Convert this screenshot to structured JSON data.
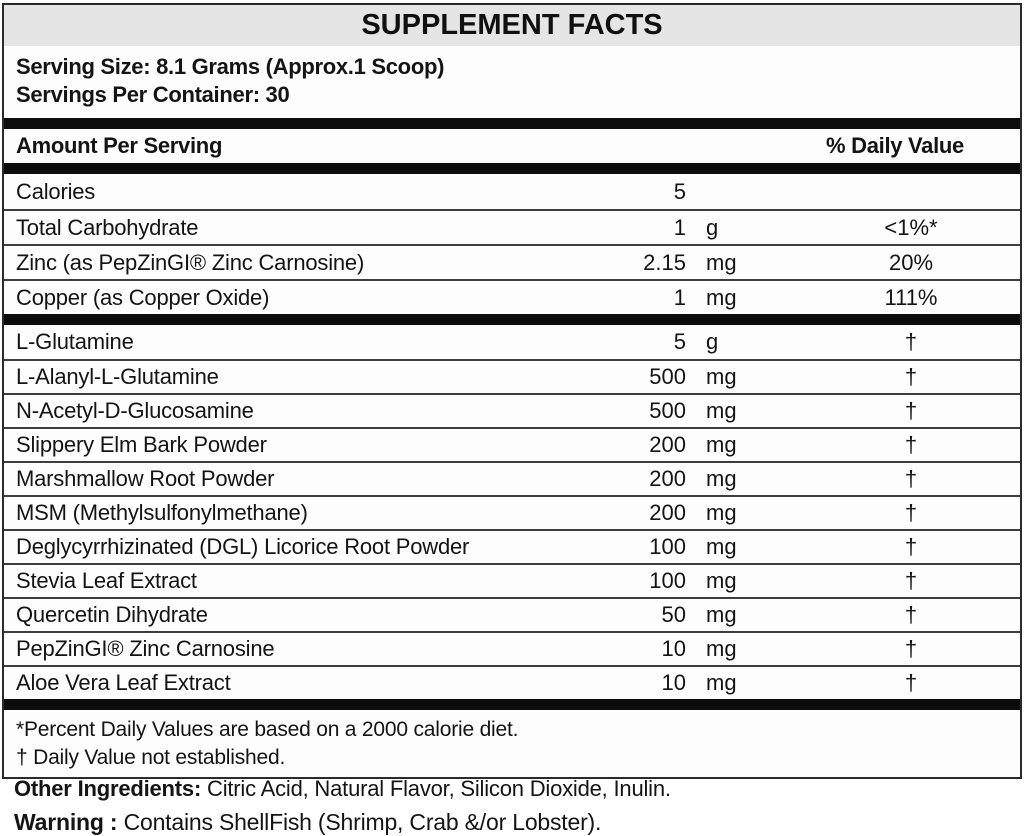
{
  "label": {
    "title": "SUPPLEMENT FACTS",
    "serving_size": "Serving Size: 8.1 Grams (Approx.1 Scoop)",
    "servings_per_container": "Servings Per Container: 30",
    "header": {
      "amount_per_serving": "Amount Per Serving",
      "daily_value": "% Daily Value"
    },
    "main_rows": [
      {
        "name": "Calories",
        "amount": "5",
        "unit": "",
        "dv": ""
      },
      {
        "name": "Total Carbohydrate",
        "amount": "1",
        "unit": "g",
        "dv": "<1%*"
      },
      {
        "name": "Zinc (as PepZinGI® Zinc Carnosine)",
        "amount": "2.15",
        "unit": "mg",
        "dv": "20%"
      },
      {
        "name": "Copper (as Copper Oxide)",
        "amount": "1",
        "unit": "mg",
        "dv": "111%"
      }
    ],
    "ingredient_rows": [
      {
        "name": "L-Glutamine",
        "amount": "5",
        "unit": "g",
        "dv": "†"
      },
      {
        "name": "L-Alanyl-L-Glutamine",
        "amount": "500",
        "unit": "mg",
        "dv": "†"
      },
      {
        "name": "N-Acetyl-D-Glucosamine",
        "amount": "500",
        "unit": "mg",
        "dv": "†"
      },
      {
        "name": "Slippery Elm Bark Powder",
        "amount": "200",
        "unit": "mg",
        "dv": "†"
      },
      {
        "name": "Marshmallow Root Powder",
        "amount": "200",
        "unit": "mg",
        "dv": "†"
      },
      {
        "name": "MSM (Methylsulfonylmethane)",
        "amount": "200",
        "unit": "mg",
        "dv": "†"
      },
      {
        "name": "Deglycyrrhizinated (DGL) Licorice Root Powder",
        "amount": "100",
        "unit": "mg",
        "dv": "†"
      },
      {
        "name": "Stevia Leaf Extract",
        "amount": "100",
        "unit": "mg",
        "dv": "†"
      },
      {
        "name": "Quercetin Dihydrate",
        "amount": "50",
        "unit": "mg",
        "dv": "†"
      },
      {
        "name": "PepZinGI® Zinc Carnosine",
        "amount": "10",
        "unit": "mg",
        "dv": "†"
      },
      {
        "name": "Aloe Vera Leaf Extract",
        "amount": "10",
        "unit": "mg",
        "dv": "†"
      }
    ],
    "footnotes": [
      "*Percent Daily Values are based on a 2000 calorie diet.",
      "† Daily Value not established."
    ],
    "other_ingredients_label": "Other Ingredients:",
    "other_ingredients_text": " Citric Acid, Natural Flavor, Silicon Dioxide, Inulin.",
    "warning_label": "Warning :",
    "warning_text": " Contains ShellFish (Shrimp, Crab &/or Lobster)."
  },
  "colors": {
    "title_band_bg": "#e5e5e5",
    "box_border": "#2a2a2a",
    "thick_bar": "#0c0c0c",
    "row_divider": "#3d3d3d",
    "text": "#141414",
    "background": "#ffffff"
  }
}
